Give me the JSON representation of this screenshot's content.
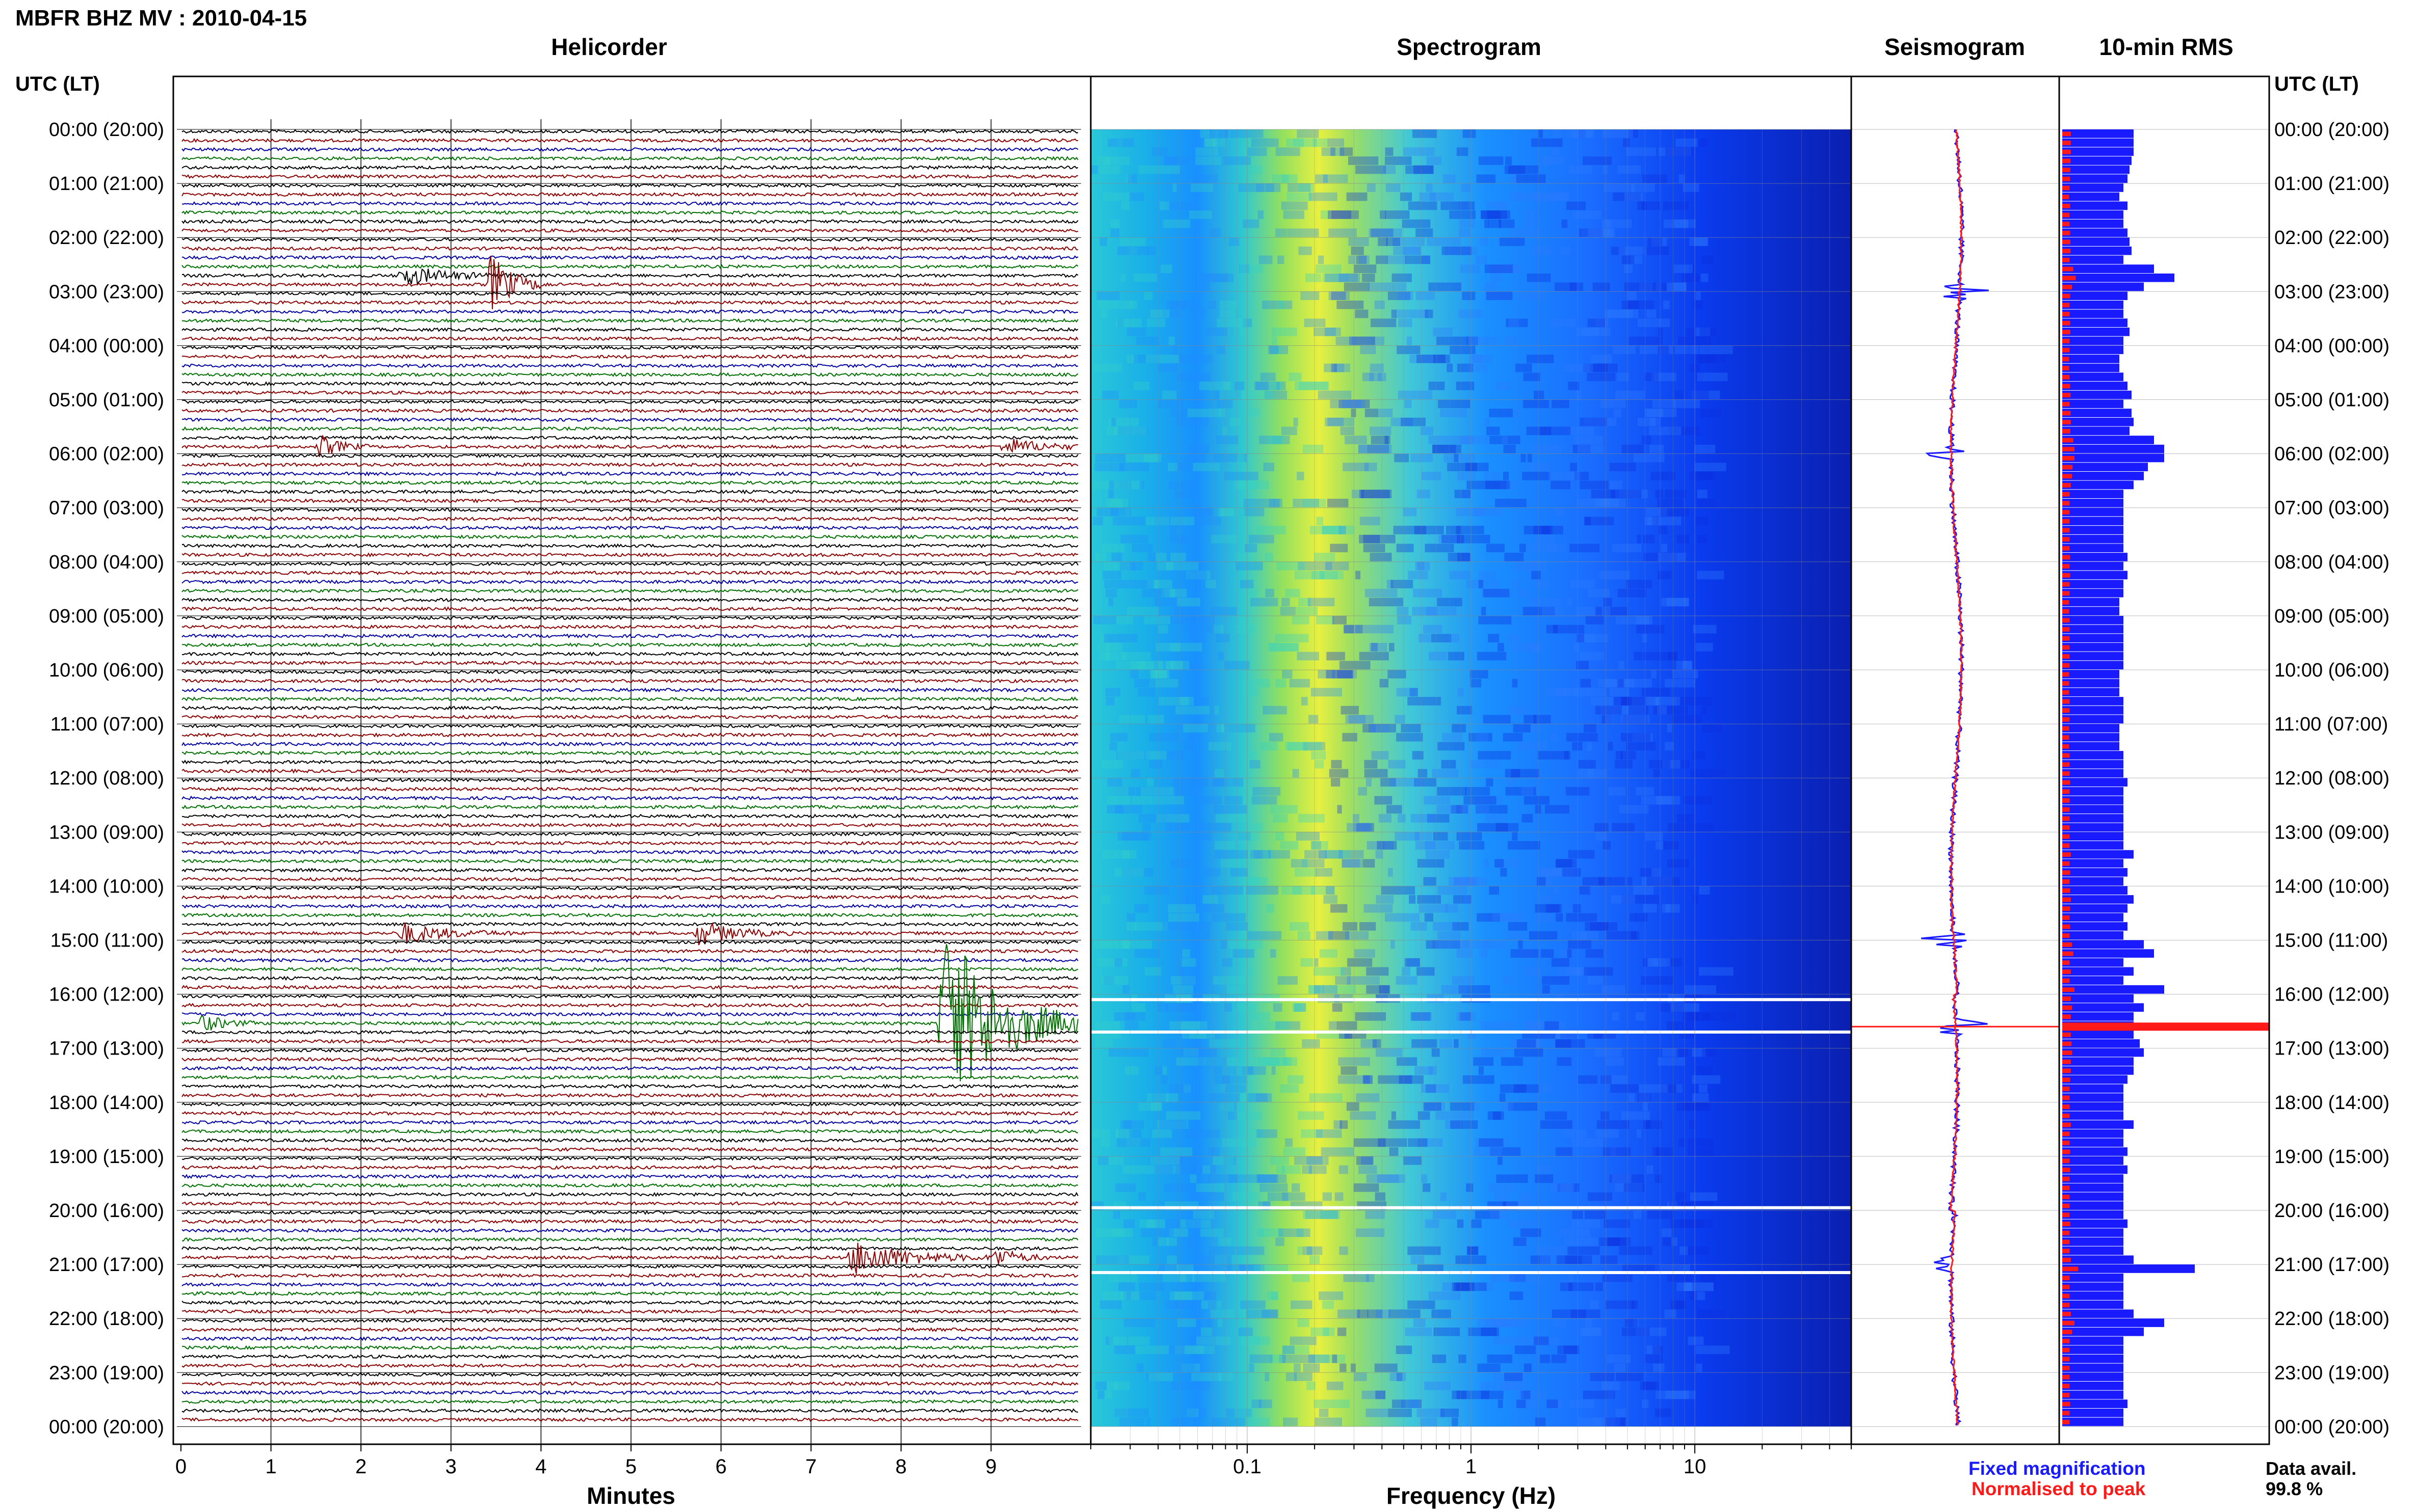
{
  "figure_title": "MBFR BHZ MV : 2010-04-15",
  "panels": {
    "helicorder": "Helicorder",
    "spectrogram": "Spectrogram",
    "seismogram": "Seismogram",
    "rms": "10-min RMS"
  },
  "time_header": "UTC (LT)",
  "time_labels": [
    "00:00 (20:00)",
    "01:00 (21:00)",
    "02:00 (22:00)",
    "03:00 (23:00)",
    "04:00 (00:00)",
    "05:00 (01:00)",
    "06:00 (02:00)",
    "07:00 (03:00)",
    "08:00 (04:00)",
    "09:00 (05:00)",
    "10:00 (06:00)",
    "11:00 (07:00)",
    "12:00 (08:00)",
    "13:00 (09:00)",
    "14:00 (10:00)",
    "15:00 (11:00)",
    "16:00 (12:00)",
    "17:00 (13:00)",
    "18:00 (14:00)",
    "19:00 (15:00)",
    "20:00 (16:00)",
    "21:00 (17:00)",
    "22:00 (18:00)",
    "23:00 (19:00)",
    "00:00 (20:00)"
  ],
  "helicorder_axis": {
    "label": "Minutes",
    "ticks": [
      "0",
      "1",
      "2",
      "3",
      "4",
      "5",
      "6",
      "7",
      "8",
      "9"
    ]
  },
  "spectrogram_axis": {
    "label": "Frequency (Hz)",
    "ticks": [
      "0.1",
      "1",
      "10"
    ]
  },
  "legend": {
    "fixed": "Fixed magnification",
    "normalised": "Normalised to peak"
  },
  "availability": {
    "label": "Data avail.",
    "value": "99.8 %"
  },
  "colors": {
    "fixed": "#1a1aff",
    "normalised": "#ff1a1a",
    "trace_colors": [
      "#000000",
      "#8b0000",
      "#0000a0",
      "#007000"
    ]
  },
  "chart_data": {
    "type": "helicorder+spectrogram",
    "station": "MBFR",
    "channel": "BHZ",
    "network": "MV",
    "date": "2010-04-15",
    "rows_per_hour": 6,
    "hours": 24,
    "helicorder_xlim_minutes": [
      0,
      10
    ],
    "spectrogram_xlim_hz": [
      0.02,
      50
    ],
    "spectrogram_scale": "log",
    "events": [
      {
        "hour": 2,
        "row": 4,
        "minute": 2.5,
        "amp": 0.6,
        "dur": 1.2
      },
      {
        "hour": 2,
        "row": 5,
        "minute": 3.5,
        "amp": 1.8,
        "dur": 0.6
      },
      {
        "hour": 5,
        "row": 5,
        "minute": 1.6,
        "amp": 0.7,
        "dur": 0.5
      },
      {
        "hour": 5,
        "row": 5,
        "minute": 9.2,
        "amp": 0.5,
        "dur": 1.0
      },
      {
        "hour": 14,
        "row": 5,
        "minute": 5.8,
        "amp": 0.7,
        "dur": 1.0
      },
      {
        "hour": 14,
        "row": 5,
        "minute": 2.5,
        "amp": 0.6,
        "dur": 1.2
      },
      {
        "hour": 16,
        "row": 3,
        "minute": 8.5,
        "amp": 5.5,
        "dur": 1.7
      },
      {
        "hour": 16,
        "row": 3,
        "minute": 0.3,
        "amp": 0.5,
        "dur": 0.6
      },
      {
        "hour": 20,
        "row": 5,
        "minute": 7.5,
        "amp": 1.0,
        "dur": 1.5
      },
      {
        "hour": 20,
        "row": 5,
        "minute": 9.1,
        "amp": 0.6,
        "dur": 0.6
      }
    ],
    "seismogram_spikes_hours": [
      3.0,
      6.0,
      15.0,
      16.6,
      21.0
    ],
    "rms_blue": [
      0.35,
      0.35,
      0.35,
      0.34,
      0.33,
      0.32,
      0.3,
      0.28,
      0.32,
      0.3,
      0.3,
      0.32,
      0.33,
      0.34,
      0.3,
      0.45,
      0.55,
      0.4,
      0.32,
      0.3,
      0.3,
      0.32,
      0.33,
      0.3,
      0.3,
      0.28,
      0.28,
      0.3,
      0.32,
      0.34,
      0.3,
      0.34,
      0.35,
      0.33,
      0.45,
      0.5,
      0.5,
      0.42,
      0.4,
      0.35,
      0.3,
      0.3,
      0.3,
      0.3,
      0.3,
      0.3,
      0.3,
      0.32,
      0.3,
      0.32,
      0.3,
      0.3,
      0.28,
      0.28,
      0.3,
      0.3,
      0.3,
      0.3,
      0.3,
      0.3,
      0.28,
      0.28,
      0.28,
      0.3,
      0.3,
      0.3,
      0.28,
      0.28,
      0.28,
      0.3,
      0.3,
      0.3,
      0.32,
      0.3,
      0.3,
      0.3,
      0.3,
      0.3,
      0.3,
      0.3,
      0.35,
      0.3,
      0.32,
      0.3,
      0.32,
      0.35,
      0.32,
      0.3,
      0.32,
      0.3,
      0.4,
      0.45,
      0.3,
      0.35,
      0.3,
      0.5,
      0.35,
      0.4,
      0.35,
      0.35,
      0.35,
      0.38,
      0.4,
      0.35,
      0.35,
      0.32,
      0.3,
      0.3,
      0.3,
      0.3,
      0.35,
      0.3,
      0.3,
      0.32,
      0.3,
      0.32,
      0.3,
      0.3,
      0.3,
      0.3,
      0.3,
      0.32,
      0.3,
      0.3,
      0.3,
      0.35,
      0.65,
      0.3,
      0.3,
      0.3,
      0.3,
      0.35,
      0.5,
      0.4,
      0.3,
      0.3,
      0.3,
      0.3,
      0.3,
      0.3,
      0.3,
      0.32,
      0.3,
      0.3
    ],
    "rms_red_peak_hour": 16.6,
    "data_availability_percent": 99.8
  }
}
